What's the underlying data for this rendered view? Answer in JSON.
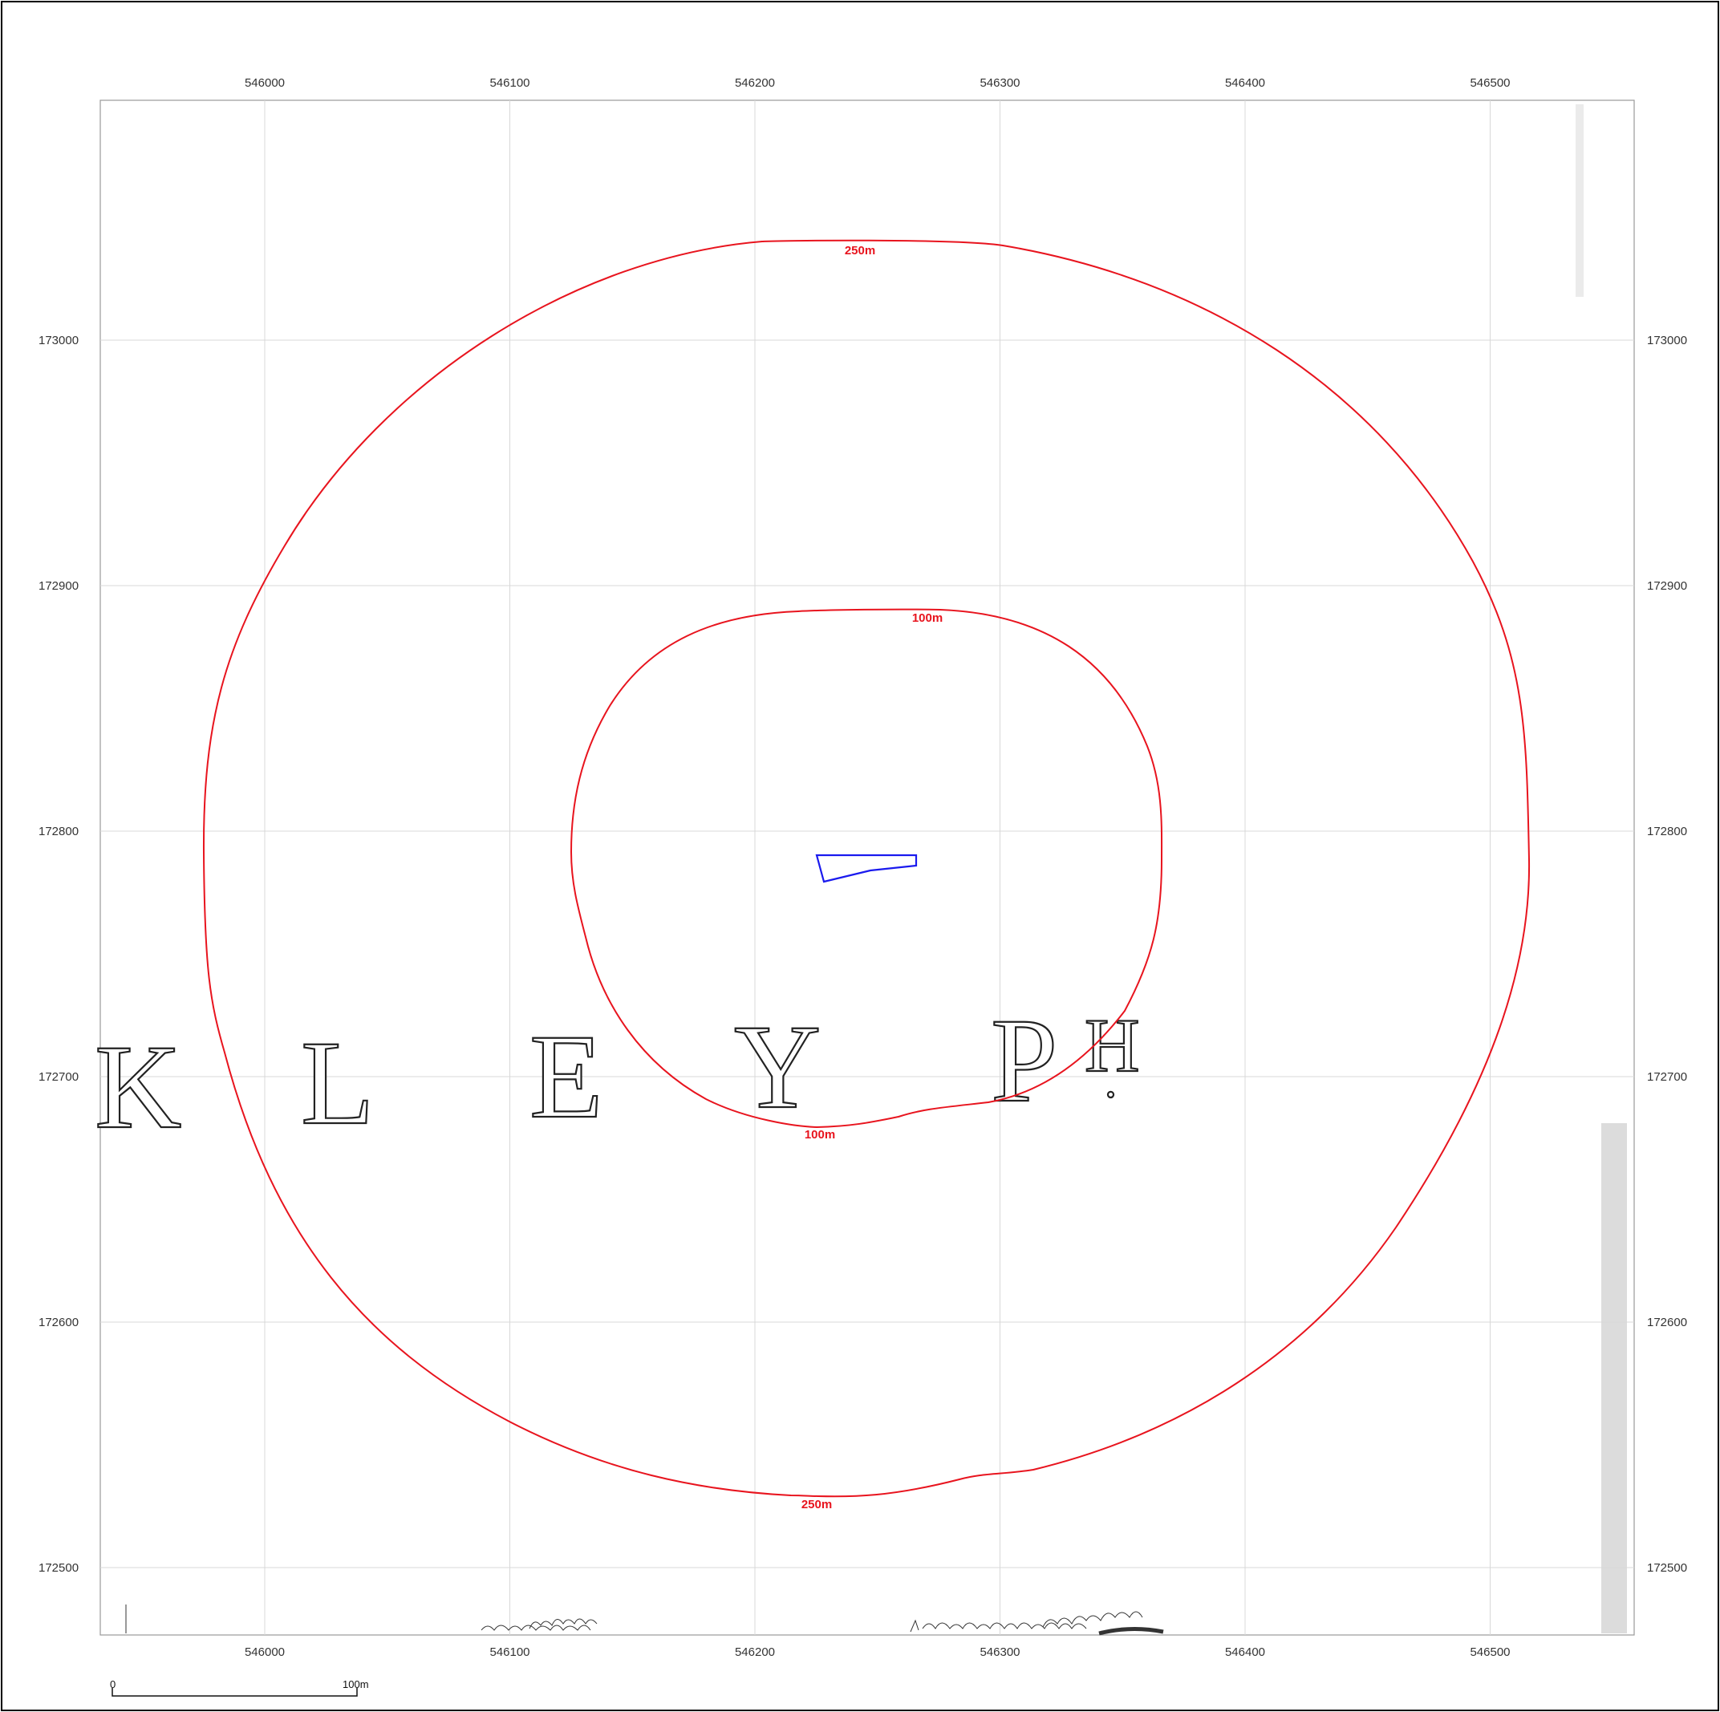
{
  "map": {
    "easting_ticks": [
      "546000",
      "546100",
      "546200",
      "546300",
      "546400",
      "546500"
    ],
    "northing_ticks": [
      "173000",
      "172900",
      "172800",
      "172700",
      "172600",
      "172500"
    ],
    "buffers": [
      {
        "label": "250m",
        "color": "#e8141e"
      },
      {
        "label": "100m",
        "color": "#e8141e"
      }
    ],
    "site_boundary_color": "#1a1aee",
    "place_name_letters": [
      "K",
      "L",
      "E",
      "Y",
      "P",
      "H",
      "."
    ],
    "scale_bar": {
      "start_label": "0",
      "end_label": "100m"
    }
  }
}
